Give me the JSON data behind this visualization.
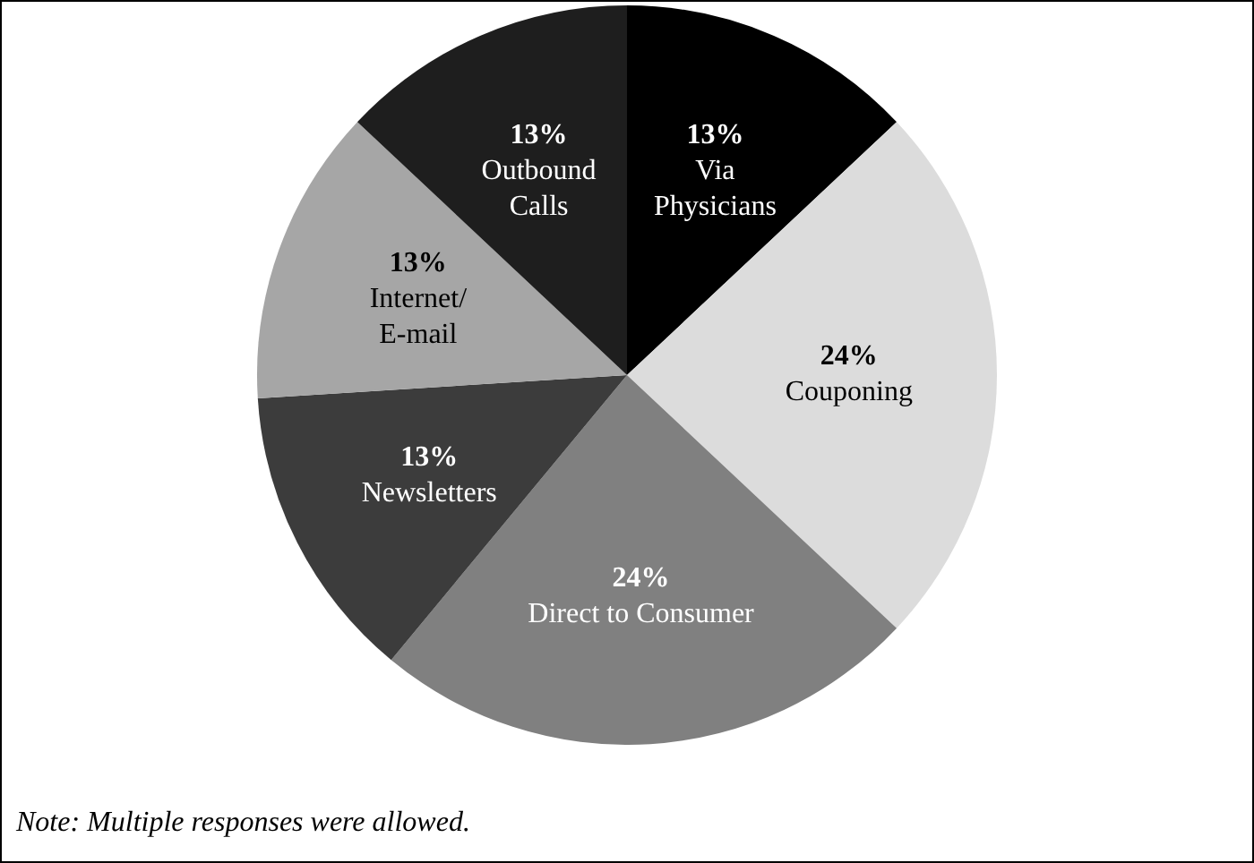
{
  "chart_data": {
    "type": "pie",
    "categories": [
      "Via Physicians",
      "Couponing",
      "Direct to Consumer",
      "Newsletters",
      "Internet/E-mail",
      "Outbound Calls"
    ],
    "values": [
      13,
      24,
      24,
      13,
      13,
      13
    ],
    "value_labels": [
      "13%",
      "24%",
      "24%",
      "13%",
      "13%",
      "13%"
    ],
    "colors": [
      "#000000",
      "#dcdcdc",
      "#808080",
      "#3c3c3c",
      "#a6a6a6",
      "#1e1e1e"
    ],
    "legend": false,
    "annotations": [
      "Note: Multiple responses were allowed."
    ]
  }
}
